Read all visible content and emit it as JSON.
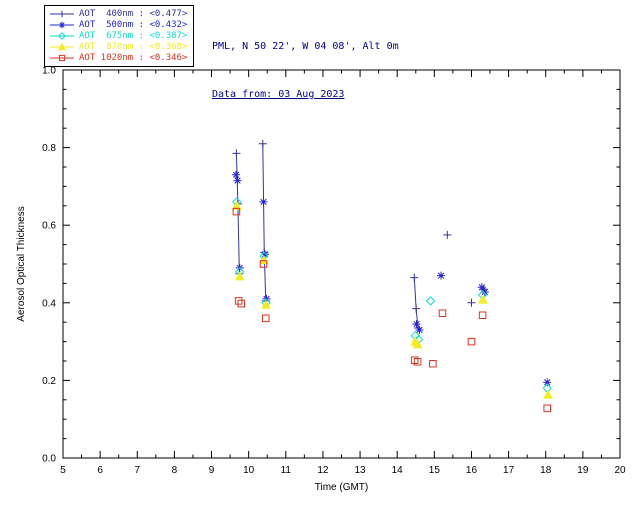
{
  "header": {
    "location": "PML, N 50 22', W 04 08', Alt 0m",
    "date": "Data from: 03 Aug 2023",
    "text_color": "#00008b"
  },
  "legend": {
    "items": [
      {
        "id": "400nm",
        "label": "AOT  400nm : <0.477>",
        "color": "#3333a0",
        "marker": "plus"
      },
      {
        "id": "500nm",
        "label": "AOT  500nm : <0.432>",
        "color": "#2424d8",
        "marker": "asterisk"
      },
      {
        "id": "675nm",
        "label": "AOT  675nm : <0.387>",
        "color": "#10ddc4",
        "marker": "diamond"
      },
      {
        "id": "870nm",
        "label": "AOT  870nm : <0.368>",
        "color": "#f0ee20",
        "marker": "triangle"
      },
      {
        "id": "1020nm",
        "label": "AOT 1020nm : <0.346>",
        "color": "#dd3322",
        "marker": "square"
      }
    ]
  },
  "chart_data": {
    "type": "scatter",
    "title": "",
    "xlabel": "Time (GMT)",
    "ylabel": "Aerosol Optical Thickness",
    "xlim": [
      5,
      20
    ],
    "ylim": [
      0.0,
      1.0
    ],
    "xticks": [
      5,
      6,
      7,
      8,
      9,
      10,
      11,
      12,
      13,
      14,
      15,
      16,
      17,
      18,
      19,
      20
    ],
    "yticks": [
      "0.0",
      "0.2",
      "0.4",
      "0.6",
      "0.8",
      "1.0"
    ],
    "x_minor_step": 0.5,
    "y_minor_step": 0.05,
    "connect_gap": 0.3,
    "grid": false,
    "legend_position": "top-left",
    "series": [
      {
        "id": "400nm",
        "name": "AOT 400nm",
        "mean": 0.477,
        "color": "#3333a0",
        "marker": "plus",
        "connect": true,
        "points": [
          [
            9.67,
            0.785
          ],
          [
            9.71,
            0.655
          ],
          [
            9.75,
            0.475
          ],
          [
            10.38,
            0.81
          ],
          [
            10.42,
            0.53
          ],
          [
            10.46,
            0.405
          ],
          [
            14.46,
            0.465
          ],
          [
            14.51,
            0.385
          ],
          [
            14.56,
            0.335
          ],
          [
            15.35,
            0.575
          ],
          [
            16.0,
            0.4
          ],
          [
            16.33,
            0.435
          ]
        ]
      },
      {
        "id": "500nm",
        "name": "AOT 500nm",
        "mean": 0.432,
        "color": "#2424d8",
        "marker": "asterisk",
        "connect": false,
        "points": [
          [
            9.66,
            0.73
          ],
          [
            9.7,
            0.715
          ],
          [
            9.76,
            0.49
          ],
          [
            10.4,
            0.66
          ],
          [
            10.44,
            0.525
          ],
          [
            10.48,
            0.41
          ],
          [
            14.52,
            0.345
          ],
          [
            14.6,
            0.33
          ],
          [
            15.18,
            0.47
          ],
          [
            16.28,
            0.44
          ],
          [
            16.36,
            0.428
          ],
          [
            18.04,
            0.195
          ]
        ]
      },
      {
        "id": "675nm",
        "name": "AOT 675nm",
        "mean": 0.387,
        "color": "#10ddc4",
        "marker": "diamond",
        "connect": false,
        "points": [
          [
            9.68,
            0.66
          ],
          [
            9.76,
            0.48
          ],
          [
            10.41,
            0.52
          ],
          [
            10.47,
            0.4
          ],
          [
            14.49,
            0.315
          ],
          [
            14.57,
            0.305
          ],
          [
            14.9,
            0.405
          ],
          [
            16.3,
            0.42
          ],
          [
            18.04,
            0.18
          ]
        ]
      },
      {
        "id": "870nm",
        "name": "AOT 870nm",
        "mean": 0.368,
        "color": "#f0ee20",
        "marker": "triangle",
        "connect": false,
        "points": [
          [
            9.68,
            0.65
          ],
          [
            9.76,
            0.468
          ],
          [
            10.41,
            0.51
          ],
          [
            10.47,
            0.395
          ],
          [
            14.48,
            0.3
          ],
          [
            14.55,
            0.293
          ],
          [
            16.31,
            0.408
          ],
          [
            18.06,
            0.163
          ]
        ]
      },
      {
        "id": "1020nm",
        "name": "AOT 1020nm",
        "mean": 0.346,
        "color": "#dd3322",
        "marker": "square",
        "connect": false,
        "points": [
          [
            9.67,
            0.635
          ],
          [
            9.73,
            0.405
          ],
          [
            9.8,
            0.398
          ],
          [
            10.4,
            0.5
          ],
          [
            10.46,
            0.36
          ],
          [
            14.47,
            0.252
          ],
          [
            14.55,
            0.248
          ],
          [
            14.96,
            0.243
          ],
          [
            15.22,
            0.373
          ],
          [
            16.0,
            0.3
          ],
          [
            16.3,
            0.368
          ],
          [
            18.04,
            0.128
          ]
        ]
      }
    ]
  }
}
